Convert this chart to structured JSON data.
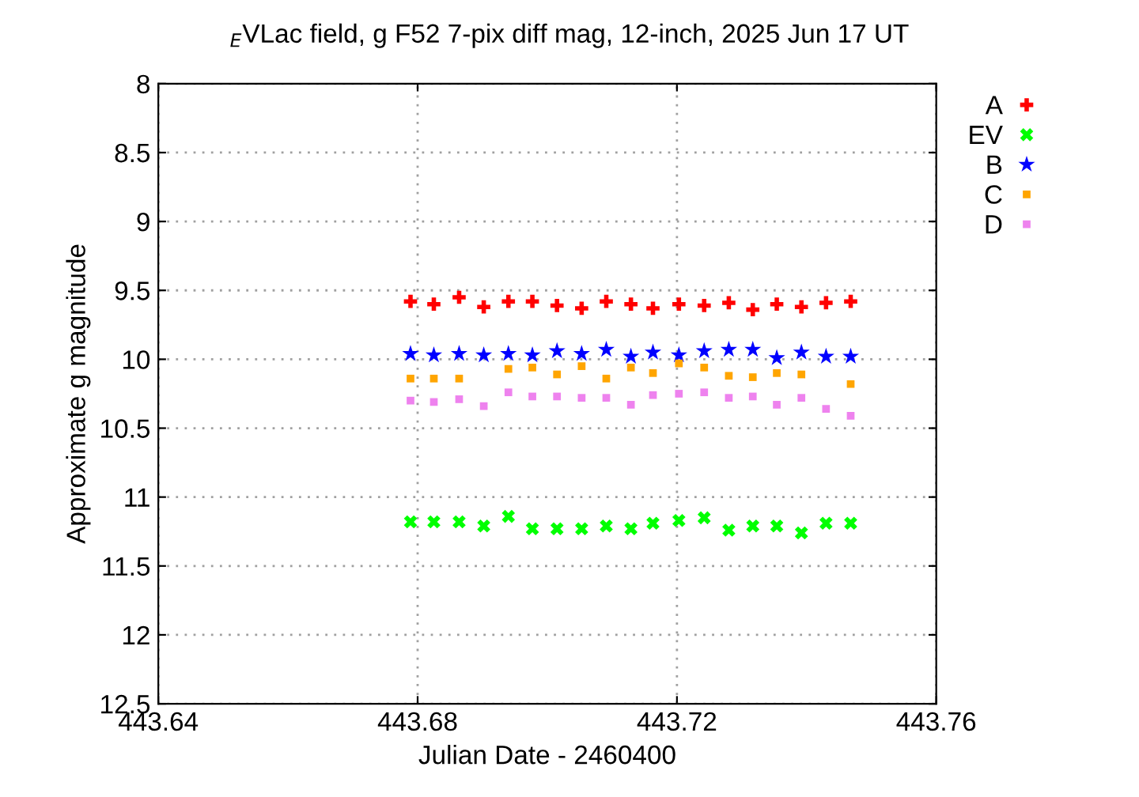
{
  "chart_data": {
    "type": "scatter",
    "title": "$_{E}$VLac field, g F52 7-pix diff mag, 12-inch, 2025 Jun 17 UT",
    "xlabel": "Julian Date - 2460400",
    "ylabel": "Approximate g magnitude",
    "x": [
      443.6789,
      443.6825,
      443.6864,
      443.6902,
      443.694,
      443.6977,
      443.7015,
      443.7053,
      443.7091,
      443.7129,
      443.7163,
      443.7203,
      443.7242,
      443.728,
      443.7317,
      443.7354,
      443.7392,
      443.743,
      443.7468
    ],
    "series": [
      {
        "name": "A",
        "color": "#ff0000",
        "marker": "plus",
        "values": [
          9.58,
          9.6,
          9.55,
          9.62,
          9.58,
          9.58,
          9.61,
          9.63,
          9.58,
          9.6,
          9.63,
          9.6,
          9.61,
          9.59,
          9.64,
          9.6,
          9.62,
          9.59,
          9.58
        ]
      },
      {
        "name": "EV",
        "color": "#00ff00",
        "marker": "cross",
        "values": [
          11.18,
          11.18,
          11.18,
          11.21,
          11.14,
          11.23,
          11.23,
          11.23,
          11.21,
          11.23,
          11.19,
          11.17,
          11.15,
          11.24,
          11.21,
          11.21,
          11.26,
          11.19,
          11.19
        ]
      },
      {
        "name": "B",
        "color": "#0000ff",
        "marker": "star",
        "values": [
          9.96,
          9.97,
          9.96,
          9.97,
          9.96,
          9.97,
          9.94,
          9.96,
          9.93,
          9.98,
          9.95,
          9.97,
          9.94,
          9.93,
          9.93,
          9.99,
          9.95,
          9.98,
          9.98
        ]
      },
      {
        "name": "C",
        "color": "#ffa500",
        "marker": "square",
        "values": [
          10.14,
          10.14,
          10.14,
          null,
          10.07,
          10.06,
          10.11,
          10.05,
          10.14,
          10.06,
          10.1,
          10.03,
          10.06,
          10.12,
          10.13,
          10.1,
          10.11,
          null,
          10.18
        ]
      },
      {
        "name": "D",
        "color": "#ee82ee",
        "marker": "square",
        "values": [
          10.3,
          10.31,
          10.29,
          10.34,
          10.24,
          10.27,
          10.27,
          10.28,
          10.28,
          10.33,
          10.26,
          10.25,
          10.24,
          10.28,
          10.27,
          10.33,
          10.28,
          10.36,
          10.41
        ]
      }
    ],
    "xlim": [
      443.64,
      443.76
    ],
    "xticks": [
      443.64,
      443.68,
      443.72,
      443.76
    ],
    "ylim": [
      12.5,
      8
    ],
    "yticks": [
      8,
      8.5,
      9,
      9.5,
      10,
      10.5,
      11,
      11.5,
      12,
      12.5
    ],
    "grid": true,
    "legend": "top right"
  }
}
